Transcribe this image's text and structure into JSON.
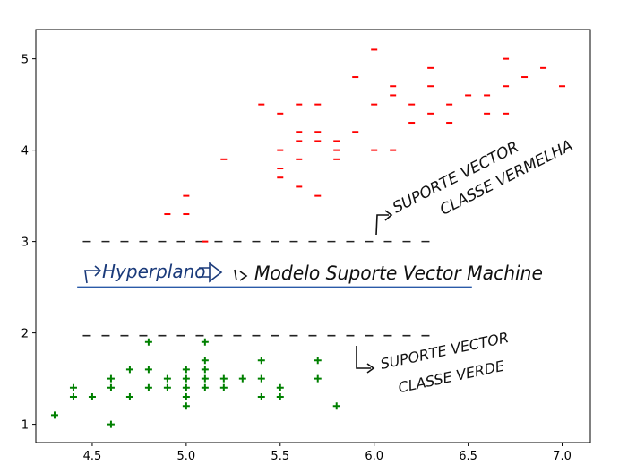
{
  "chart_data": {
    "type": "scatter",
    "xlim": [
      4.2,
      7.15
    ],
    "ylim": [
      0.8,
      5.32
    ],
    "xticks": [
      "4.5",
      "5.0",
      "5.5",
      "6.0",
      "6.5",
      "7.0"
    ],
    "yticks": [
      "1",
      "2",
      "3",
      "4",
      "5"
    ],
    "grid": false,
    "series": [
      {
        "marker": "plus",
        "color": "#008000",
        "points": [
          [
            4.3,
            1.1
          ],
          [
            4.4,
            1.3
          ],
          [
            4.4,
            1.4
          ],
          [
            4.5,
            1.3
          ],
          [
            4.6,
            1.0
          ],
          [
            4.6,
            1.4
          ],
          [
            4.6,
            1.5
          ],
          [
            4.7,
            1.3
          ],
          [
            4.7,
            1.6
          ],
          [
            4.8,
            1.4
          ],
          [
            4.8,
            1.6
          ],
          [
            4.8,
            1.9
          ],
          [
            4.9,
            1.4
          ],
          [
            4.9,
            1.5
          ],
          [
            5.0,
            1.2
          ],
          [
            5.0,
            1.3
          ],
          [
            5.0,
            1.4
          ],
          [
            5.0,
            1.5
          ],
          [
            5.0,
            1.6
          ],
          [
            5.1,
            1.4
          ],
          [
            5.1,
            1.5
          ],
          [
            5.1,
            1.6
          ],
          [
            5.1,
            1.7
          ],
          [
            5.1,
            1.9
          ],
          [
            5.2,
            1.4
          ],
          [
            5.2,
            1.5
          ],
          [
            5.3,
            1.5
          ],
          [
            5.4,
            1.3
          ],
          [
            5.4,
            1.5
          ],
          [
            5.4,
            1.7
          ],
          [
            5.5,
            1.3
          ],
          [
            5.5,
            1.4
          ],
          [
            5.7,
            1.5
          ],
          [
            5.7,
            1.7
          ],
          [
            5.8,
            1.2
          ]
        ]
      },
      {
        "marker": "minus",
        "color": "#ff0000",
        "points": [
          [
            4.9,
            3.3
          ],
          [
            5.0,
            3.3
          ],
          [
            5.0,
            3.5
          ],
          [
            5.1,
            3.0
          ],
          [
            5.2,
            3.9
          ],
          [
            5.4,
            4.5
          ],
          [
            5.5,
            3.7
          ],
          [
            5.5,
            3.8
          ],
          [
            5.5,
            4.0
          ],
          [
            5.5,
            4.4
          ],
          [
            5.6,
            3.6
          ],
          [
            5.6,
            3.9
          ],
          [
            5.6,
            4.1
          ],
          [
            5.6,
            4.2
          ],
          [
            5.6,
            4.5
          ],
          [
            5.7,
            3.5
          ],
          [
            5.7,
            4.1
          ],
          [
            5.7,
            4.2
          ],
          [
            5.7,
            4.5
          ],
          [
            5.8,
            3.9
          ],
          [
            5.8,
            4.0
          ],
          [
            5.8,
            4.1
          ],
          [
            5.9,
            4.2
          ],
          [
            5.9,
            4.8
          ],
          [
            6.0,
            4.0
          ],
          [
            6.0,
            4.5
          ],
          [
            6.0,
            5.1
          ],
          [
            6.1,
            4.0
          ],
          [
            6.1,
            4.6
          ],
          [
            6.1,
            4.7
          ],
          [
            6.2,
            4.3
          ],
          [
            6.2,
            4.5
          ],
          [
            6.3,
            4.4
          ],
          [
            6.3,
            4.7
          ],
          [
            6.3,
            4.9
          ],
          [
            6.4,
            4.3
          ],
          [
            6.4,
            4.5
          ],
          [
            6.5,
            4.6
          ],
          [
            6.6,
            4.4
          ],
          [
            6.6,
            4.6
          ],
          [
            6.7,
            4.4
          ],
          [
            6.7,
            4.7
          ],
          [
            6.7,
            5.0
          ],
          [
            6.8,
            4.8
          ],
          [
            6.9,
            4.9
          ],
          [
            7.0,
            4.7
          ]
        ]
      }
    ],
    "support_lines": [
      {
        "x": [
          4.45,
          6.3
        ],
        "y": 3.0,
        "style": "dashed",
        "color": "#222222"
      },
      {
        "x": [
          4.45,
          6.3
        ],
        "y": 1.97,
        "style": "dashed",
        "color": "#222222"
      }
    ],
    "hyperplane": {
      "x": [
        4.42,
        6.52
      ],
      "y": 2.5,
      "color": "#2a5aa8"
    },
    "annotations": [
      {
        "id": "vermelha",
        "lines": [
          "SUPORTE VECTOR",
          "CLASSE VERMELHA"
        ],
        "color": "#111111"
      },
      {
        "id": "hyperplano",
        "text": "Hyperplano",
        "color": "#1a3a7a"
      },
      {
        "id": "modelo",
        "text": "Modelo Suporte Vector Machine",
        "color": "#111111"
      },
      {
        "id": "verde",
        "lines": [
          "SUPORTE VECTOR",
          "CLASSE VERDE"
        ],
        "color": "#111111"
      }
    ]
  }
}
